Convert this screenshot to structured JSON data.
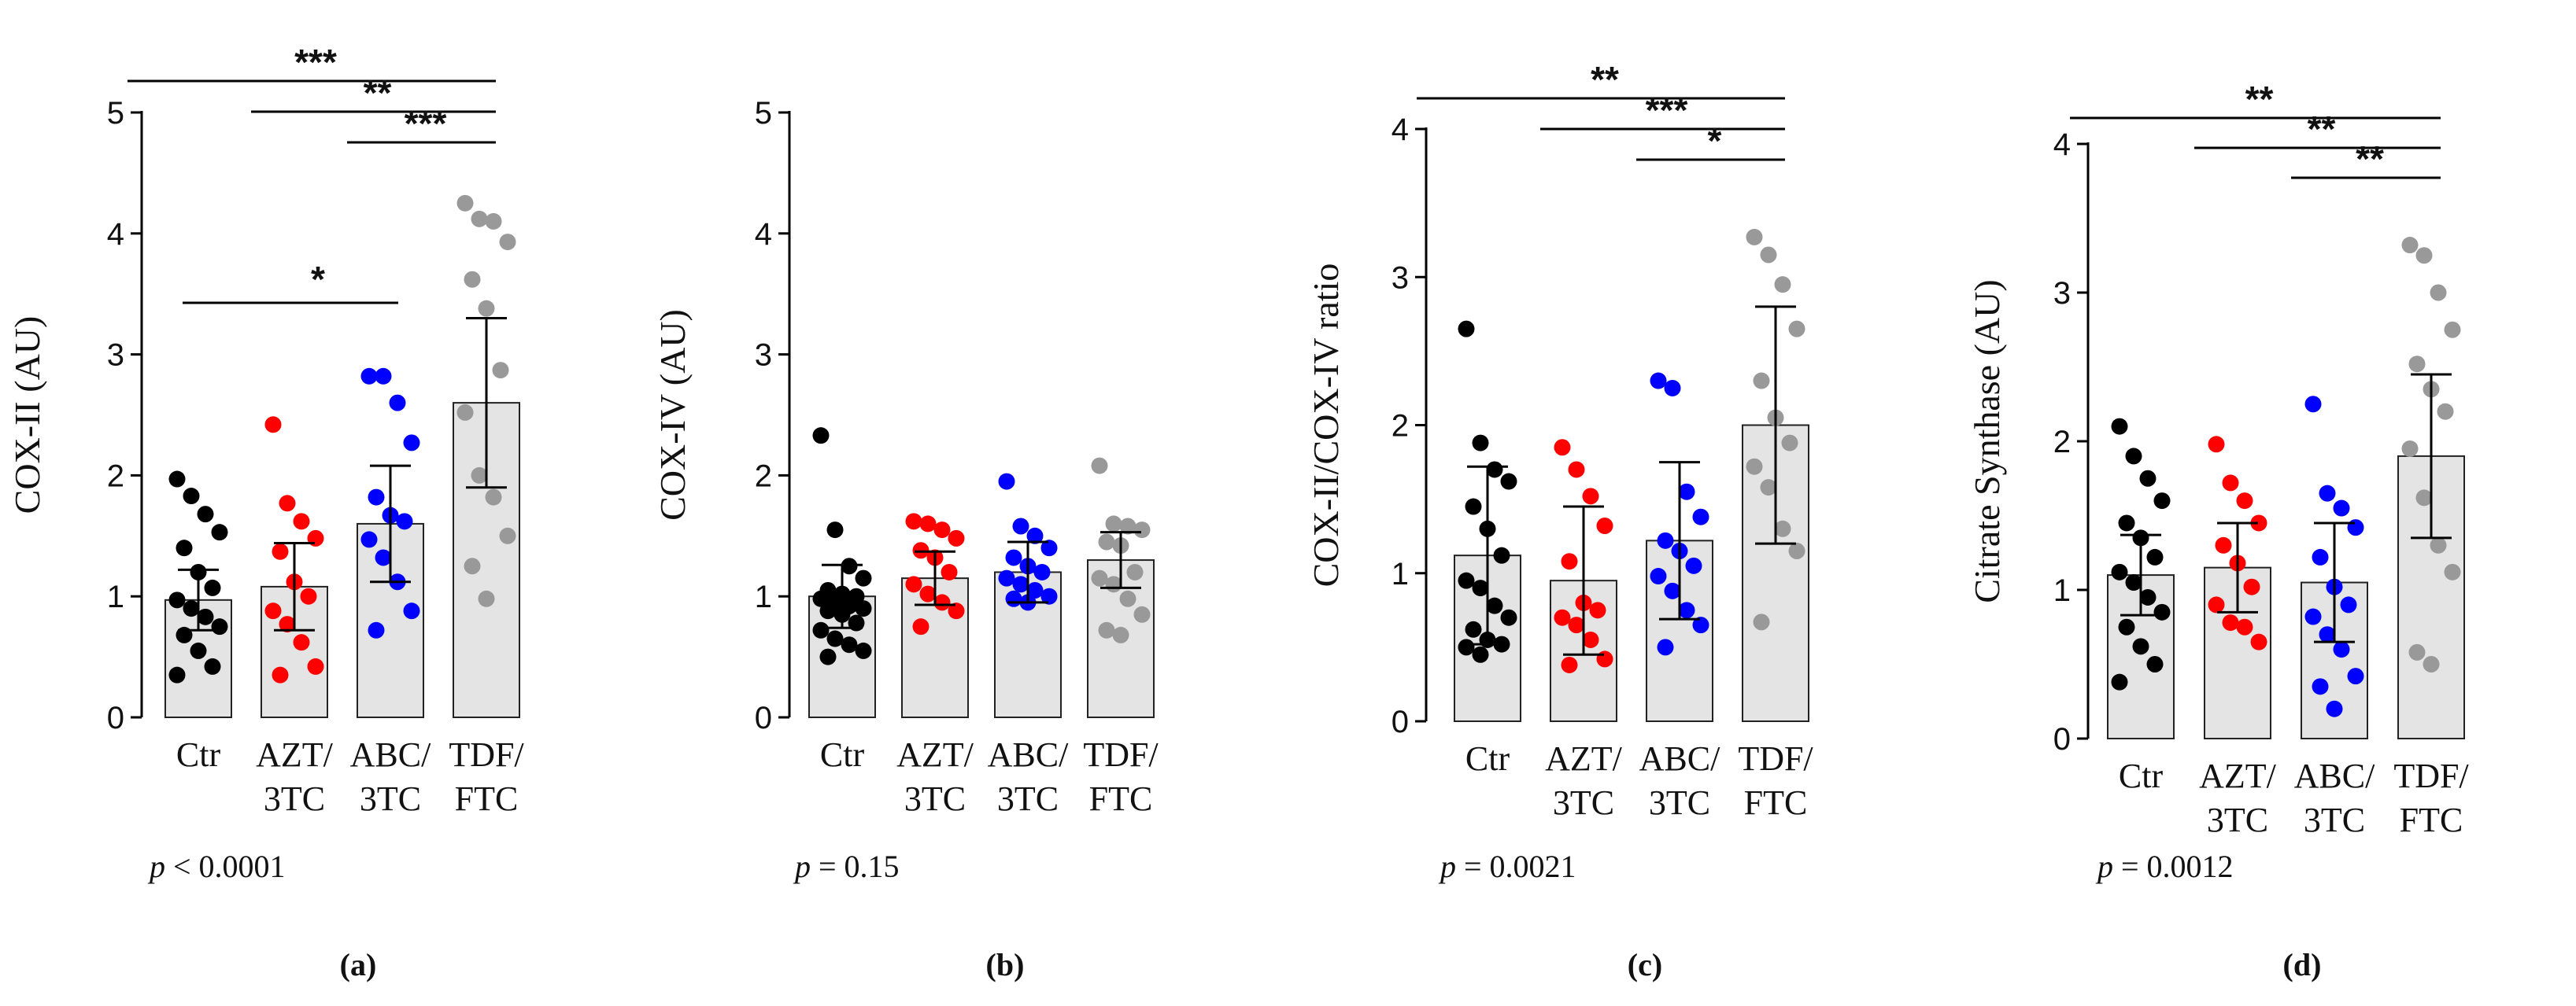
{
  "chart_data": [
    {
      "type": "bar",
      "panel_label": "(a)",
      "ylabel": "COX-II (AU)",
      "ylim": [
        0,
        5
      ],
      "yticks": [
        "0",
        "1",
        "2",
        "3",
        "4",
        "5"
      ],
      "categories": [
        [
          "Ctr"
        ],
        [
          "AZT/",
          "3TC"
        ],
        [
          "ABC/",
          "3TC"
        ],
        [
          "TDF/",
          "FTC"
        ]
      ],
      "means": [
        0.97,
        1.08,
        1.6,
        2.6
      ],
      "errors": [
        0.25,
        0.36,
        0.48,
        0.7
      ],
      "points": [
        [
          1.97,
          1.83,
          1.68,
          1.53,
          1.4,
          1.2,
          1.07,
          0.97,
          0.9,
          0.83,
          0.75,
          0.68,
          0.55,
          0.42,
          0.35
        ],
        [
          2.42,
          1.77,
          1.62,
          1.48,
          1.37,
          1.12,
          1.0,
          0.88,
          0.77,
          0.62,
          0.42,
          0.35
        ],
        [
          2.82,
          2.82,
          2.6,
          2.27,
          1.82,
          1.67,
          1.62,
          1.47,
          1.32,
          1.12,
          0.88,
          0.72
        ],
        [
          4.25,
          4.12,
          4.1,
          3.93,
          3.62,
          3.38,
          2.87,
          2.52,
          2.0,
          1.82,
          1.5,
          1.25,
          0.98
        ]
      ],
      "comparisons": [
        {
          "from": 0,
          "to": 3,
          "stars": "***"
        },
        {
          "from": 1,
          "to": 3,
          "stars": "**"
        },
        {
          "from": 2,
          "to": 3,
          "stars": "***"
        },
        {
          "from": 0,
          "to": 2,
          "stars": "*"
        }
      ],
      "p_prefix": "p",
      "p_text": " < 0.0001"
    },
    {
      "type": "bar",
      "panel_label": "(b)",
      "ylabel": "COX-IV (AU)",
      "ylim": [
        0,
        5
      ],
      "yticks": [
        "0",
        "1",
        "2",
        "3",
        "4",
        "5"
      ],
      "categories": [
        [
          "Ctr"
        ],
        [
          "AZT/",
          "3TC"
        ],
        [
          "ABC/",
          "3TC"
        ],
        [
          "TDF/",
          "FTC"
        ]
      ],
      "means": [
        1.0,
        1.15,
        1.2,
        1.3
      ],
      "errors": [
        0.26,
        0.22,
        0.25,
        0.23
      ],
      "points": [
        [
          2.33,
          1.55,
          1.25,
          1.15,
          1.05,
          1.02,
          1.0,
          0.98,
          0.95,
          0.92,
          0.9,
          0.88,
          0.85,
          0.78,
          0.72,
          0.65,
          0.6,
          0.55,
          0.5
        ],
        [
          1.62,
          1.6,
          1.55,
          1.48,
          1.38,
          1.32,
          1.2,
          1.1,
          1.02,
          0.95,
          0.88,
          0.75
        ],
        [
          1.95,
          1.58,
          1.5,
          1.4,
          1.32,
          1.25,
          1.2,
          1.15,
          1.1,
          1.05,
          1.0,
          0.98,
          0.95
        ],
        [
          2.08,
          1.6,
          1.58,
          1.55,
          1.45,
          1.42,
          1.2,
          1.15,
          1.1,
          0.98,
          0.85,
          0.72,
          0.68
        ]
      ],
      "comparisons": [],
      "p_prefix": "p",
      "p_text": " = 0.15"
    },
    {
      "type": "bar",
      "panel_label": "(c)",
      "ylabel": "COX-II/COX-IV ratio",
      "ylim": [
        0,
        4
      ],
      "yticks": [
        "0",
        "1",
        "2",
        "3",
        "4"
      ],
      "categories": [
        [
          "Ctr"
        ],
        [
          "AZT/",
          "3TC"
        ],
        [
          "ABC/",
          "3TC"
        ],
        [
          "TDF/",
          "FTC"
        ]
      ],
      "means": [
        1.12,
        0.95,
        1.22,
        2.0
      ],
      "errors": [
        0.6,
        0.5,
        0.53,
        0.8
      ],
      "points": [
        [
          2.65,
          1.88,
          1.7,
          1.62,
          1.45,
          1.3,
          1.12,
          0.95,
          0.9,
          0.78,
          0.7,
          0.62,
          0.55,
          0.52,
          0.5,
          0.45
        ],
        [
          1.85,
          1.7,
          1.52,
          1.32,
          1.08,
          0.8,
          0.75,
          0.7,
          0.65,
          0.55,
          0.42,
          0.38
        ],
        [
          2.3,
          2.25,
          1.55,
          1.38,
          1.22,
          1.15,
          1.05,
          0.98,
          0.88,
          0.75,
          0.65,
          0.5
        ],
        [
          3.27,
          3.15,
          2.95,
          2.65,
          2.3,
          2.05,
          1.88,
          1.72,
          1.58,
          1.3,
          1.15,
          0.67
        ]
      ],
      "comparisons": [
        {
          "from": 0,
          "to": 3,
          "stars": "**"
        },
        {
          "from": 1,
          "to": 3,
          "stars": "***"
        },
        {
          "from": 2,
          "to": 3,
          "stars": "*"
        }
      ],
      "p_prefix": "p",
      "p_text": " = 0.0021"
    },
    {
      "type": "bar",
      "panel_label": "(d)",
      "ylabel": "Citrate Synthase (AU)",
      "ylim": [
        0,
        4
      ],
      "yticks": [
        "0",
        "1",
        "2",
        "3",
        "4"
      ],
      "categories": [
        [
          "Ctr"
        ],
        [
          "AZT/",
          "3TC"
        ],
        [
          "ABC/",
          "3TC"
        ],
        [
          "TDF/",
          "FTC"
        ]
      ],
      "means": [
        1.1,
        1.15,
        1.05,
        1.9
      ],
      "errors": [
        0.27,
        0.3,
        0.4,
        0.55
      ],
      "points": [
        [
          2.1,
          1.9,
          1.75,
          1.6,
          1.45,
          1.35,
          1.22,
          1.12,
          1.05,
          0.95,
          0.85,
          0.75,
          0.62,
          0.5,
          0.38
        ],
        [
          1.98,
          1.72,
          1.6,
          1.45,
          1.3,
          1.18,
          1.02,
          0.9,
          0.78,
          0.75,
          0.65
        ],
        [
          2.25,
          1.65,
          1.55,
          1.42,
          1.22,
          1.02,
          0.9,
          0.82,
          0.7,
          0.6,
          0.42,
          0.35,
          0.2
        ],
        [
          3.32,
          3.25,
          3.0,
          2.75,
          2.52,
          2.35,
          2.2,
          1.95,
          1.62,
          1.3,
          1.12,
          0.58,
          0.5
        ]
      ],
      "comparisons": [
        {
          "from": 0,
          "to": 3,
          "stars": "**"
        },
        {
          "from": 1,
          "to": 3,
          "stars": "**"
        },
        {
          "from": 2,
          "to": 3,
          "stars": "**"
        }
      ],
      "p_prefix": "p",
      "p_text": " = 0.0012"
    }
  ],
  "colors": {
    "bar_fill": "#e4e4e4",
    "bar_stroke": "#222222",
    "ctr": "#000000",
    "azt": "#ff0000",
    "abc": "#0000ff",
    "tdf": "#999999"
  }
}
